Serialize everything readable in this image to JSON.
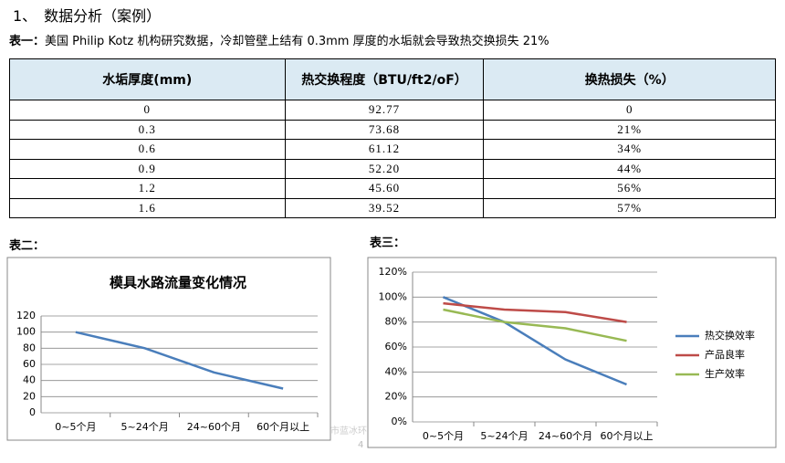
{
  "heading": "1、　数据分析（案例）",
  "caption1": {
    "label": "表一：",
    "text": "美国 Philip Kotz 机构研究数据，冷却管壁上结有 0.3mm 厚度的水垢就会导致热交换损失 21%"
  },
  "table": {
    "columns": [
      "水垢厚度(mm)",
      "热交换程度（BTU/ft2/oF）",
      "换热损失（%）"
    ],
    "rows": [
      [
        "0",
        "92.77",
        "0"
      ],
      [
        "0.3",
        "73.68",
        "21%"
      ],
      [
        "0.6",
        "61.12",
        "34%"
      ],
      [
        "0.9",
        "52.20",
        "44%"
      ],
      [
        "1.2",
        "45.60",
        "56%"
      ],
      [
        "1.6",
        "39.52",
        "57%"
      ]
    ]
  },
  "caption2": "表二：",
  "caption3": "表三：",
  "watermark": "市蓝冰环",
  "page_number": "4",
  "chart_data": [
    {
      "type": "line",
      "title": "模具水路流量变化情况",
      "categories": [
        "0~5个月",
        "5~24个月",
        "24~60个月",
        "60个月以上"
      ],
      "values": [
        100,
        80,
        50,
        30
      ],
      "color": "#4a7ebb",
      "ylim": [
        0,
        120
      ],
      "yticks": [
        0,
        20,
        40,
        60,
        80,
        100,
        120
      ],
      "grid": true
    },
    {
      "type": "line",
      "categories": [
        "0~5个月",
        "5~24个月",
        "24~60个月",
        "60个月以上"
      ],
      "series": [
        {
          "name": "热交换效率",
          "color": "#4a7ebb",
          "values": [
            100,
            80,
            50,
            30
          ]
        },
        {
          "name": "产品良率",
          "color": "#be4b48",
          "values": [
            95,
            90,
            88,
            80
          ]
        },
        {
          "name": "生产效率",
          "color": "#98b954",
          "values": [
            90,
            80,
            75,
            65
          ]
        }
      ],
      "ylim": [
        0,
        120
      ],
      "yticks": [
        {
          "value": 0,
          "label": "0%"
        },
        {
          "value": 20,
          "label": "20%"
        },
        {
          "value": 40,
          "label": "40%"
        },
        {
          "value": 60,
          "label": "60%"
        },
        {
          "value": 80,
          "label": "80%"
        },
        {
          "value": 100,
          "label": "100%"
        },
        {
          "value": 120,
          "label": "120%"
        }
      ],
      "grid": true,
      "legend": "right"
    }
  ]
}
